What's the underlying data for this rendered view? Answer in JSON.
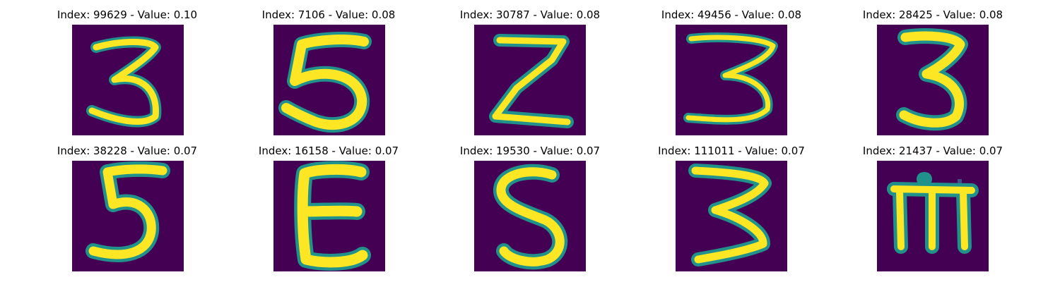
{
  "colors": {
    "background": "#440154",
    "stroke_core": "#fde725",
    "stroke_edge": "#21918c",
    "stroke_mid": "#5ec962"
  },
  "panels": [
    {
      "title": "Index: 99629 - Value: 0.10",
      "glyph": "3a"
    },
    {
      "title": "Index: 7106 - Value: 0.08",
      "glyph": "5a"
    },
    {
      "title": "Index: 30787 - Value: 0.08",
      "glyph": "z"
    },
    {
      "title": "Index: 49456 - Value: 0.08",
      "glyph": "3b"
    },
    {
      "title": "Index: 28425 - Value: 0.08",
      "glyph": "3c"
    },
    {
      "title": "Index: 38228 - Value: 0.07",
      "glyph": "5b"
    },
    {
      "title": "Index: 16158 - Value: 0.07",
      "glyph": "e"
    },
    {
      "title": "Index: 19530 - Value: 0.07",
      "glyph": "s"
    },
    {
      "title": "Index: 111011 - Value: 0.07",
      "glyph": "3d"
    },
    {
      "title": "Index: 21437 - Value: 0.07",
      "glyph": "m"
    }
  ]
}
